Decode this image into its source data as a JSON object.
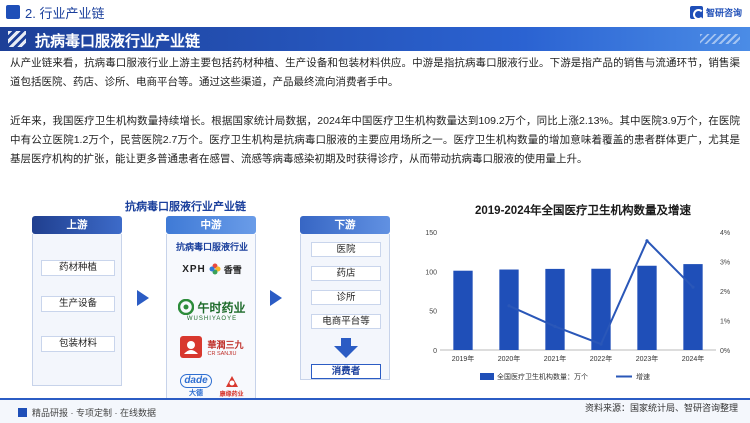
{
  "header": {
    "section_label": "2. 行业产业链",
    "brand_name": "智研咨询",
    "title": "抗病毒口服液行业产业链"
  },
  "paragraphs": {
    "p1": "从产业链来看，抗病毒口服液行业上游主要包括药材种植、生产设备和包装材料供应。中游是指抗病毒口服液行业。下游是指产品的销售与流通环节，销售渠道包括医院、药店、诊所、电商平台等。通过这些渠道，产品最终流向消费者手中。",
    "p2": "近年来，我国医疗卫生机构数量持续增长。根据国家统计局数据，2024年中国医疗卫生机构数量达到109.2万个，同比上涨2.13%。其中医院3.9万个，在医院中有公立医院1.2万个，民营医院2.7万个。医疗卫生机构是抗病毒口服液的主要应用场所之一。医疗卫生机构数量的增加意味着覆盖的患者群体更广，尤其是基层医疗机构的扩张，能让更多普通患者在感冒、流感等病毒感染初期及时获得诊疗，从而带动抗病毒口服液的使用量上升。"
  },
  "chain": {
    "title": "抗病毒口服液行业产业链",
    "upstream": {
      "head": "上游",
      "items": [
        "药材种植",
        "生产设备",
        "包装材料"
      ]
    },
    "midstream": {
      "head": "中游",
      "label": "抗病毒口服液行业",
      "logos": [
        {
          "text": "XPH",
          "sub": "香雪",
          "icon": "xph-logo-icon"
        },
        {
          "text": "午时药业",
          "sub": "WUSHIYAOYE",
          "icon": "wushi-logo-icon"
        },
        {
          "text": "華潤三九",
          "sub": "CR SANJIU",
          "icon": "sanjiu-logo-icon"
        },
        {
          "text": "大德",
          "sub": "康缘药业",
          "icon": "dade-logo-icon"
        }
      ]
    },
    "downstream": {
      "head": "下游",
      "items": [
        "医院",
        "药店",
        "诊所",
        "电商平台等"
      ],
      "consumer": "消费者"
    },
    "colors": {
      "arrow": "#2b5cc4",
      "dark_blue": "#1f4fb8"
    }
  },
  "chart_data": {
    "type": "bar",
    "title": "2019-2024年全国医疗卫生机构数量及增速",
    "categories": [
      "2019年",
      "2020年",
      "2021年",
      "2022年",
      "2023年",
      "2024年"
    ],
    "series": [
      {
        "name": "全国医疗卫生机构数量：万个",
        "type": "bar",
        "axis": "left",
        "values": [
          100.8,
          102.3,
          103.1,
          103.3,
          107.1,
          109.2
        ],
        "color": "#1f4fb8"
      },
      {
        "name": "增速",
        "type": "line",
        "axis": "right",
        "values": [
          null,
          1.5,
          0.8,
          0.2,
          3.7,
          2.13
        ],
        "color": "#2a57b8"
      }
    ],
    "y_left": {
      "min": 0,
      "max": 150,
      "ticks": [
        "0",
        "50",
        "100",
        "150"
      ]
    },
    "y_right": {
      "min": 0,
      "max": 4,
      "ticks": [
        "0%",
        "1%",
        "2%",
        "3%",
        "4%"
      ]
    },
    "legend_position": "bottom",
    "grid": false
  },
  "footer": {
    "left": "精品研报 · 专项定制 · 在线数据",
    "source": "资料来源：国家统计局、智研咨询整理"
  }
}
